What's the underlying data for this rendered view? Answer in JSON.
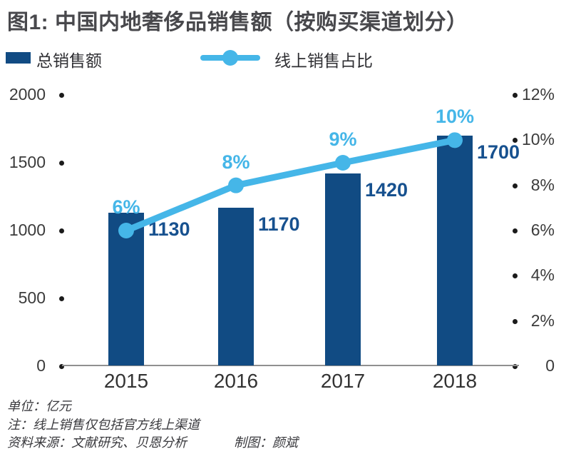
{
  "title": "图1: 中国内地奢侈品销售额（按购买渠道划分）",
  "legend": [
    {
      "label": "总销售额",
      "type": "bar"
    },
    {
      "label": "线上销售占比",
      "type": "line"
    }
  ],
  "chart_data": {
    "type": "bar",
    "title": "图1: 中国内地奢侈品销售额（按购买渠道划分）",
    "categories": [
      "2015",
      "2016",
      "2017",
      "2018"
    ],
    "series": [
      {
        "name": "总销售额",
        "type": "bar",
        "axis": "left",
        "values": [
          1130,
          1170,
          1420,
          1700
        ],
        "value_labels": [
          "1130",
          "1170",
          "1420",
          "1700"
        ]
      },
      {
        "name": "线上销售占比",
        "type": "line",
        "axis": "right",
        "values": [
          6,
          8,
          9,
          10
        ],
        "value_labels": [
          "6%",
          "8%",
          "9%",
          "10%"
        ]
      }
    ],
    "left_axis": {
      "min": 0,
      "max": 2000,
      "tick_values": [
        2000,
        1500,
        1000,
        500,
        0
      ],
      "tick_labels": [
        "2000",
        "1500",
        "1000",
        "500",
        "0"
      ]
    },
    "right_axis": {
      "min": 0,
      "max": 12,
      "tick_values": [
        12,
        10,
        8,
        6,
        4,
        2,
        0
      ],
      "tick_labels": [
        "12%",
        "10%",
        "8%",
        "6%",
        "4%",
        "2%",
        "0"
      ]
    },
    "unit": "亿元",
    "grid": false,
    "legend_position": "top-left"
  },
  "colors": {
    "bar": "#114b83",
    "line": "#45b6e8",
    "value_label": "#17518f",
    "pct_label": "#45b6e8",
    "title_text": "#48484c",
    "axis_text": "#3b3b3b",
    "tick_dot": "#1b1b1b",
    "footer_text": "#3a3a3e"
  },
  "footer": {
    "unit": "单位：亿元",
    "note": "注：线上销售仅包括官方线上渠道",
    "source": "资料来源：文献研究、贝恩分析",
    "credit": "制图：颜斌"
  }
}
